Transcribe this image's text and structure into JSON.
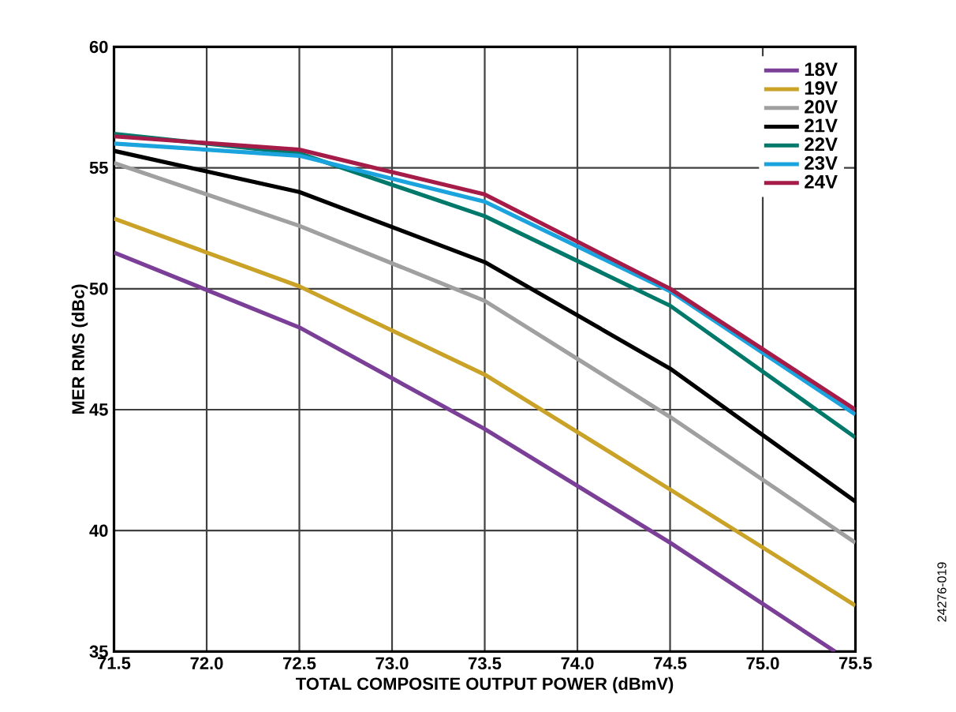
{
  "chart_data": {
    "type": "line",
    "xlabel": "TOTAL COMPOSITE OUTPUT POWER (dBmV)",
    "ylabel": "MER RMS (dBc)",
    "x": [
      71.5,
      72.5,
      73.5,
      74.5,
      75.5
    ],
    "series": [
      {
        "name": "18V",
        "color": "#7b3f98",
        "x": [
          71.5,
          72.5,
          73.5,
          74.5,
          75.39
        ],
        "values": [
          51.5,
          48.4,
          44.2,
          39.5,
          35.0
        ]
      },
      {
        "name": "19V",
        "color": "#c9a227",
        "values": [
          52.9,
          50.1,
          46.45,
          41.7,
          36.9
        ]
      },
      {
        "name": "20V",
        "color": "#a0a0a0",
        "values": [
          55.2,
          52.6,
          49.5,
          44.7,
          39.5
        ]
      },
      {
        "name": "21V",
        "color": "#000000",
        "values": [
          55.7,
          54.0,
          51.1,
          46.7,
          41.2
        ]
      },
      {
        "name": "22V",
        "color": "#00796b",
        "values": [
          56.4,
          55.6,
          53.0,
          49.3,
          43.85
        ]
      },
      {
        "name": "23V",
        "color": "#1aa3dc",
        "values": [
          56.0,
          55.5,
          53.6,
          49.9,
          44.8
        ]
      },
      {
        "name": "24V",
        "color": "#a51c48",
        "values": [
          56.3,
          55.75,
          53.9,
          50.0,
          45.0
        ]
      }
    ],
    "xlim": [
      71.5,
      75.5
    ],
    "ylim": [
      35,
      60
    ],
    "xticks": [
      {
        "value": 71.5,
        "label": "71.5"
      },
      {
        "value": 72.0,
        "label": "72.0"
      },
      {
        "value": 72.5,
        "label": "72.5"
      },
      {
        "value": 73.0,
        "label": "73.0"
      },
      {
        "value": 73.5,
        "label": "73.5"
      },
      {
        "value": 74.0,
        "label": "74.0"
      },
      {
        "value": 74.5,
        "label": "74.5"
      },
      {
        "value": 75.0,
        "label": "75.0"
      },
      {
        "value": 75.5,
        "label": "75.5"
      }
    ],
    "yticks": [
      35,
      40,
      45,
      50,
      55,
      60
    ],
    "grid": true,
    "legend": "top right",
    "marker": "none",
    "line_style": "solid",
    "annotations": [
      "24276-019"
    ]
  }
}
